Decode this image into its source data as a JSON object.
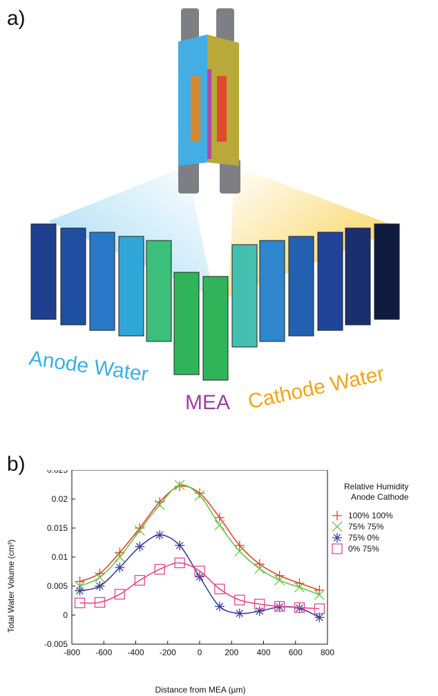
{
  "panel_a": {
    "label": "a)",
    "captions": {
      "anode": "Anode Water",
      "mea": "MEA",
      "cathode": "Cathode Water"
    },
    "colors": {
      "anode": "#3bb0e6",
      "mea": "#9b3fa0",
      "cathode": "#f3a318"
    }
  },
  "panel_b": {
    "label": "b)",
    "legend_title_1": "Relative Humidity",
    "legend_title_2": "Anode Cathode"
  },
  "chart_data": {
    "type": "line",
    "xlabel": "Distance from MEA (µm)",
    "ylabel": "Total Water Volume (cm³)",
    "xlim": [
      -800,
      800
    ],
    "ylim": [
      -0.005,
      0.025
    ],
    "xticks": [
      "-800",
      "-600",
      "-400",
      "-200",
      "0",
      "200",
      "400",
      "600",
      "800"
    ],
    "yticks": [
      "-0.005",
      "0",
      "0.005",
      "0.01",
      "0.015",
      "0.02",
      "0.025"
    ],
    "grid": false,
    "legend": "right",
    "x": [
      -750,
      -625,
      -500,
      -375,
      -250,
      -125,
      0,
      125,
      250,
      375,
      500,
      625,
      750
    ],
    "series": [
      {
        "name": "100% 100%",
        "marker": "+",
        "color": "#e2432a",
        "values": [
          0.0058,
          0.0072,
          0.0108,
          0.015,
          0.0195,
          0.0222,
          0.021,
          0.0168,
          0.012,
          0.0088,
          0.0068,
          0.0055,
          0.0043
        ]
      },
      {
        "name": "75%  75%",
        "marker": "x",
        "color": "#6cc04a",
        "values": [
          0.005,
          0.0065,
          0.01,
          0.0146,
          0.019,
          0.0224,
          0.0206,
          0.0155,
          0.011,
          0.008,
          0.006,
          0.0048,
          0.0035
        ]
      },
      {
        "name": "75%  0%",
        "marker": "*",
        "color": "#3a3f9e",
        "values": [
          0.0042,
          0.005,
          0.0082,
          0.0118,
          0.0138,
          0.012,
          0.0066,
          0.0015,
          0.0003,
          0.0007,
          0.0014,
          0.0012,
          -0.0004
        ]
      },
      {
        "name": "0%   75%",
        "marker": "square",
        "color": "#e0478a",
        "values": [
          0.0021,
          0.0022,
          0.0036,
          0.006,
          0.0079,
          0.009,
          0.0076,
          0.0045,
          0.0026,
          0.0019,
          0.0015,
          0.0013,
          0.0011
        ]
      }
    ]
  }
}
